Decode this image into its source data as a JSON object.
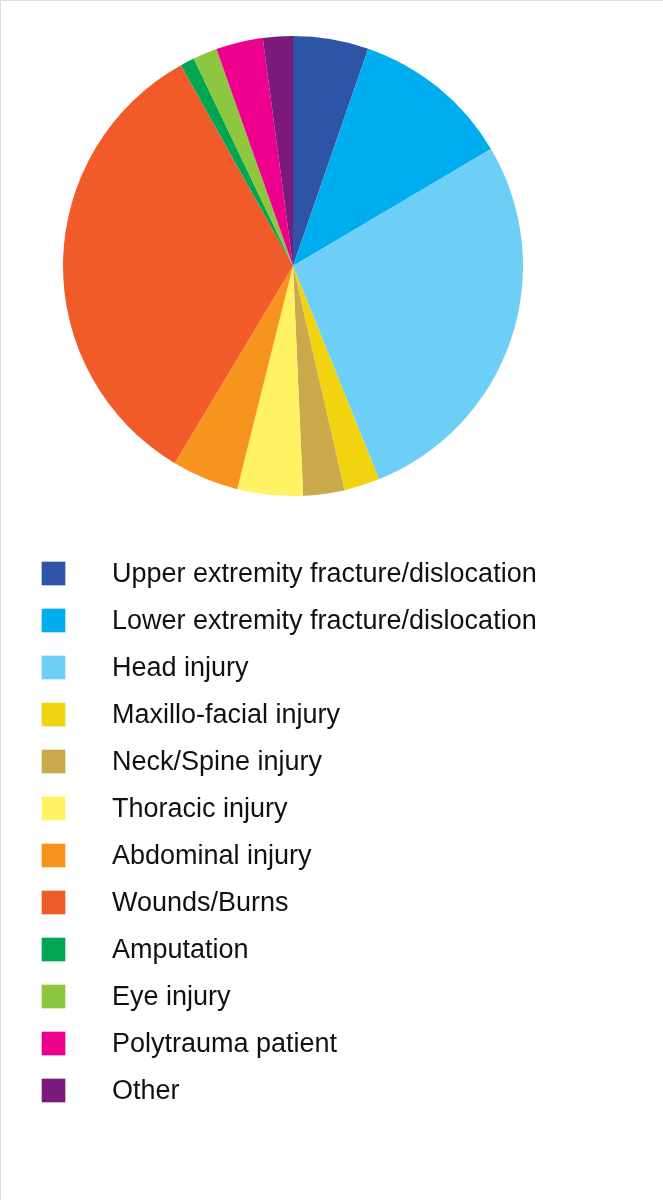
{
  "chart_data": {
    "type": "pie",
    "categories": [
      "Upper extremity fracture/dislocation",
      "Lower extremity fracture/dislocation",
      "Head injury",
      "Maxillo-facial injury",
      "Neck/Spine injury",
      "Thoracic injury",
      "Abdominal injury",
      "Wounds/Burns",
      "Amputation",
      "Eye injury",
      "Polytrauma patient",
      "Other"
    ],
    "values": [
      5.3,
      11.2,
      27.4,
      2.5,
      2.9,
      4.6,
      4.7,
      33.3,
      1.0,
      1.7,
      3.3,
      2.1
    ],
    "colors": [
      "#2e55a5",
      "#00aeef",
      "#6dcff6",
      "#f2d30f",
      "#c9a94a",
      "#fff263",
      "#f7941d",
      "#f15a29",
      "#00a651",
      "#8dc63f",
      "#ec008c",
      "#7b1a7a"
    ],
    "legend": "bottom"
  }
}
